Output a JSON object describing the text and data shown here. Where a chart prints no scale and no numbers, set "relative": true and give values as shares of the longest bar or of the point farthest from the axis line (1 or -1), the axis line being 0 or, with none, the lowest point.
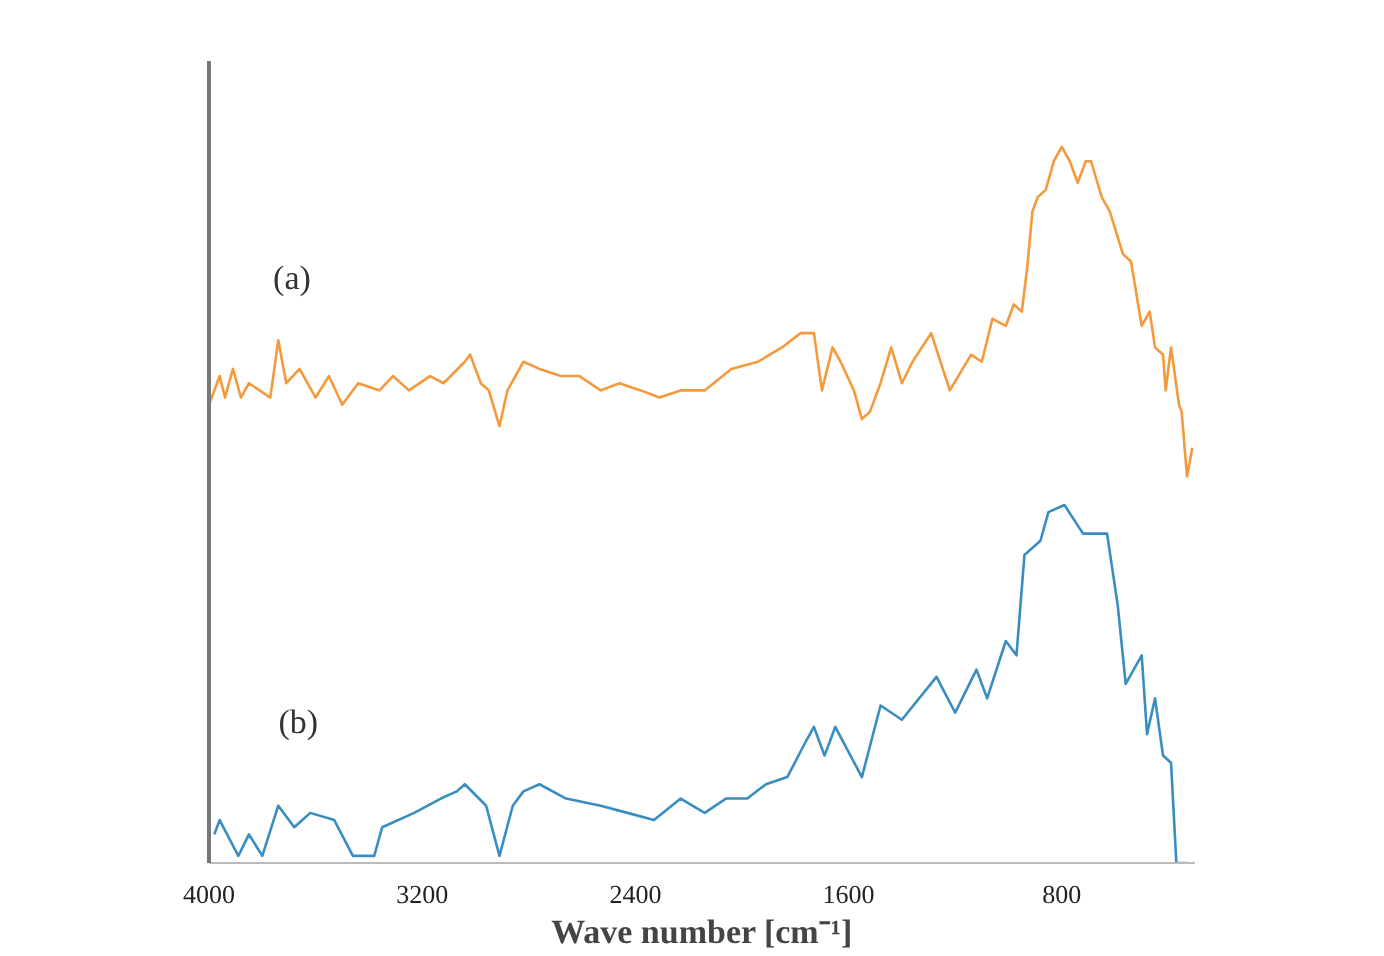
{
  "chart_data": {
    "type": "line",
    "relative": true,
    "xlabel": "Wave number [cm⁻¹]",
    "xlim": [
      4000,
      300
    ],
    "xticks": [
      4000,
      3200,
      2400,
      1600,
      800
    ],
    "grid": false,
    "marker": "none",
    "line_style": "solid",
    "series": [
      {
        "name": "(a)",
        "color": "#f59a3c",
        "x": [
          4000,
          3960,
          3940,
          3910,
          3880,
          3850,
          3770,
          3740,
          3710,
          3660,
          3600,
          3550,
          3500,
          3440,
          3360,
          3310,
          3250,
          3170,
          3120,
          3040,
          3020,
          2980,
          2950,
          2910,
          2880,
          2820,
          2760,
          2680,
          2610,
          2530,
          2460,
          2380,
          2310,
          2230,
          2140,
          2040,
          1940,
          1850,
          1780,
          1730,
          1700,
          1660,
          1630,
          1580,
          1550,
          1520,
          1480,
          1440,
          1400,
          1360,
          1290,
          1220,
          1140,
          1100,
          1060,
          1010,
          980,
          950,
          930,
          910,
          890,
          860,
          830,
          800,
          770,
          740,
          710,
          690,
          650,
          620,
          570,
          540,
          500,
          470,
          450,
          420,
          410,
          390,
          360,
          350,
          330,
          310
        ],
        "values": [
          0.64,
          0.68,
          0.65,
          0.69,
          0.65,
          0.67,
          0.65,
          0.73,
          0.67,
          0.69,
          0.65,
          0.68,
          0.64,
          0.67,
          0.66,
          0.68,
          0.66,
          0.68,
          0.67,
          0.7,
          0.71,
          0.67,
          0.66,
          0.61,
          0.66,
          0.7,
          0.69,
          0.68,
          0.68,
          0.66,
          0.67,
          0.66,
          0.65,
          0.66,
          0.66,
          0.69,
          0.7,
          0.72,
          0.74,
          0.74,
          0.66,
          0.72,
          0.7,
          0.66,
          0.62,
          0.63,
          0.67,
          0.72,
          0.67,
          0.7,
          0.74,
          0.66,
          0.71,
          0.7,
          0.76,
          0.75,
          0.78,
          0.77,
          0.83,
          0.91,
          0.93,
          0.94,
          0.98,
          1.0,
          0.98,
          0.95,
          0.98,
          0.98,
          0.93,
          0.91,
          0.85,
          0.84,
          0.75,
          0.77,
          0.72,
          0.71,
          0.66,
          0.72,
          0.64,
          0.63,
          0.54,
          0.58
        ]
      },
      {
        "name": "(b)",
        "color": "#3a8dc0",
        "x": [
          3980,
          3960,
          3890,
          3850,
          3800,
          3740,
          3680,
          3620,
          3530,
          3460,
          3380,
          3350,
          3230,
          3130,
          3070,
          3040,
          2960,
          2910,
          2860,
          2820,
          2760,
          2660,
          2530,
          2430,
          2330,
          2230,
          2140,
          2060,
          1980,
          1910,
          1830,
          1760,
          1730,
          1690,
          1650,
          1550,
          1480,
          1400,
          1270,
          1200,
          1120,
          1080,
          1010,
          970,
          940,
          880,
          850,
          790,
          720,
          630,
          590,
          560,
          500,
          480,
          450,
          420,
          390,
          370,
          330
        ],
        "values": [
          0.04,
          0.06,
          0.01,
          0.04,
          0.01,
          0.08,
          0.05,
          0.07,
          0.06,
          0.01,
          0.01,
          0.05,
          0.07,
          0.09,
          0.1,
          0.11,
          0.08,
          0.01,
          0.08,
          0.1,
          0.11,
          0.09,
          0.08,
          0.07,
          0.06,
          0.09,
          0.07,
          0.09,
          0.09,
          0.11,
          0.12,
          0.17,
          0.19,
          0.15,
          0.19,
          0.12,
          0.22,
          0.2,
          0.26,
          0.21,
          0.27,
          0.23,
          0.31,
          0.29,
          0.43,
          0.45,
          0.49,
          0.5,
          0.46,
          0.46,
          0.36,
          0.25,
          0.29,
          0.18,
          0.23,
          0.15,
          0.14,
          0,
          0
        ]
      }
    ]
  }
}
